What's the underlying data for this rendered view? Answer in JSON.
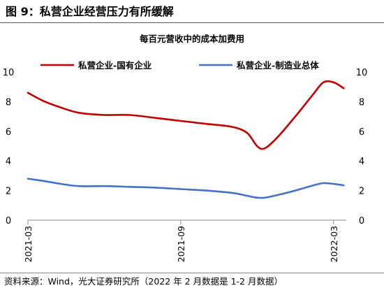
{
  "header": {
    "title": "图 9：私营企业经营压力有所缓解"
  },
  "footer": {
    "source": "资料来源：Wind，光大证券研究所（2022 年 2 月数据是 1-2 月数据）"
  },
  "colors": {
    "series_1": "#c00000",
    "series_2": "#4472c4",
    "axis": "#888888",
    "text": "#000000"
  },
  "chart_data": {
    "type": "line",
    "title": "每百元营收中的成本加费用",
    "x_tick_labels": [
      "2021-03",
      "2021-09",
      "2022-03"
    ],
    "x_tick_months": [
      0,
      6,
      12
    ],
    "y_left": {
      "ticks": [
        "0",
        "2",
        "4",
        "6",
        "8",
        "10"
      ],
      "lim": [
        0,
        10
      ]
    },
    "y_right": {
      "ticks": [
        "0",
        "2",
        "4",
        "6",
        "8",
        "10"
      ],
      "lim": [
        0,
        10
      ]
    },
    "x_range_months": [
      0,
      12.5
    ],
    "legend_position": "top",
    "grid": false,
    "series": [
      {
        "name": "私营企业-国有企业",
        "color": "#c00000",
        "x_months": [
          0,
          0.6,
          1.3,
          2,
          3,
          4,
          5,
          6,
          7,
          8,
          8.6,
          9,
          9.3,
          9.8,
          10.5,
          11.2,
          11.6,
          12,
          12.4
        ],
        "values": [
          8.6,
          8.05,
          7.6,
          7.25,
          7.1,
          7.1,
          6.9,
          6.7,
          6.5,
          6.3,
          5.9,
          5.0,
          4.85,
          5.6,
          7.0,
          8.5,
          9.3,
          9.3,
          8.9
        ]
      },
      {
        "name": "私营企业-制造业总体",
        "color": "#4472c4",
        "x_months": [
          0,
          0.6,
          1.3,
          2,
          3,
          4,
          5,
          6,
          7,
          8,
          8.6,
          9,
          9.3,
          9.8,
          10.5,
          11.2,
          11.6,
          12,
          12.4
        ],
        "values": [
          2.8,
          2.65,
          2.45,
          2.3,
          2.3,
          2.25,
          2.2,
          2.1,
          2.0,
          1.85,
          1.65,
          1.52,
          1.52,
          1.7,
          2.0,
          2.35,
          2.5,
          2.45,
          2.35
        ]
      }
    ]
  }
}
